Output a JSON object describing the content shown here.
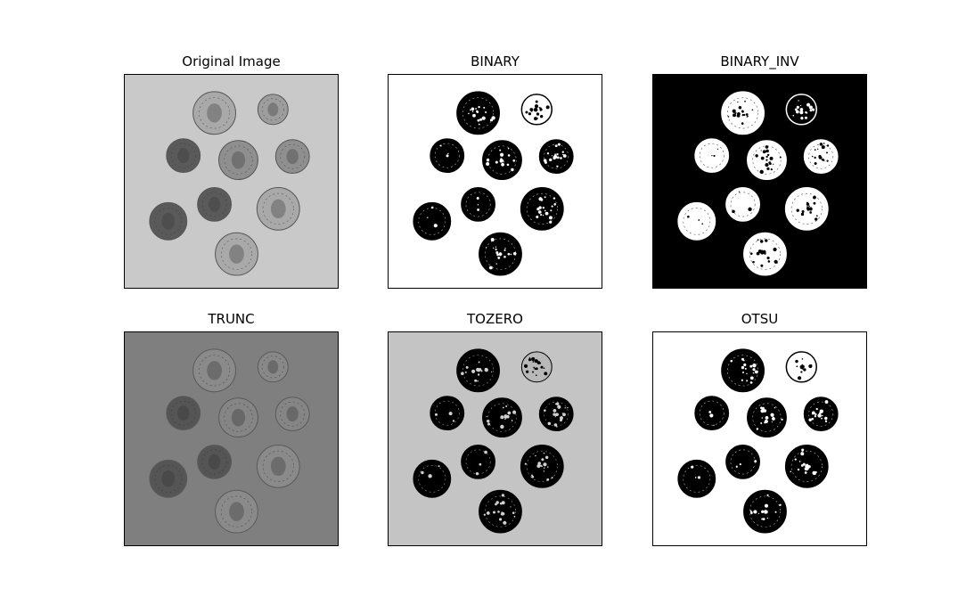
{
  "panels": [
    {
      "title": "Original Image",
      "mode": "original"
    },
    {
      "title": "BINARY",
      "mode": "binary"
    },
    {
      "title": "BINARY_INV",
      "mode": "binary_inv"
    },
    {
      "title": "TRUNC",
      "mode": "trunc"
    },
    {
      "title": "TOZERO",
      "mode": "tozero"
    },
    {
      "title": "OTSU",
      "mode": "otsu"
    }
  ],
  "colors": {
    "original_bg": "#c9c9c9",
    "trunc_bg": "#7f7f7f",
    "tozero_bg": "#c4c4c4",
    "white": "#ffffff",
    "black": "#000000"
  }
}
